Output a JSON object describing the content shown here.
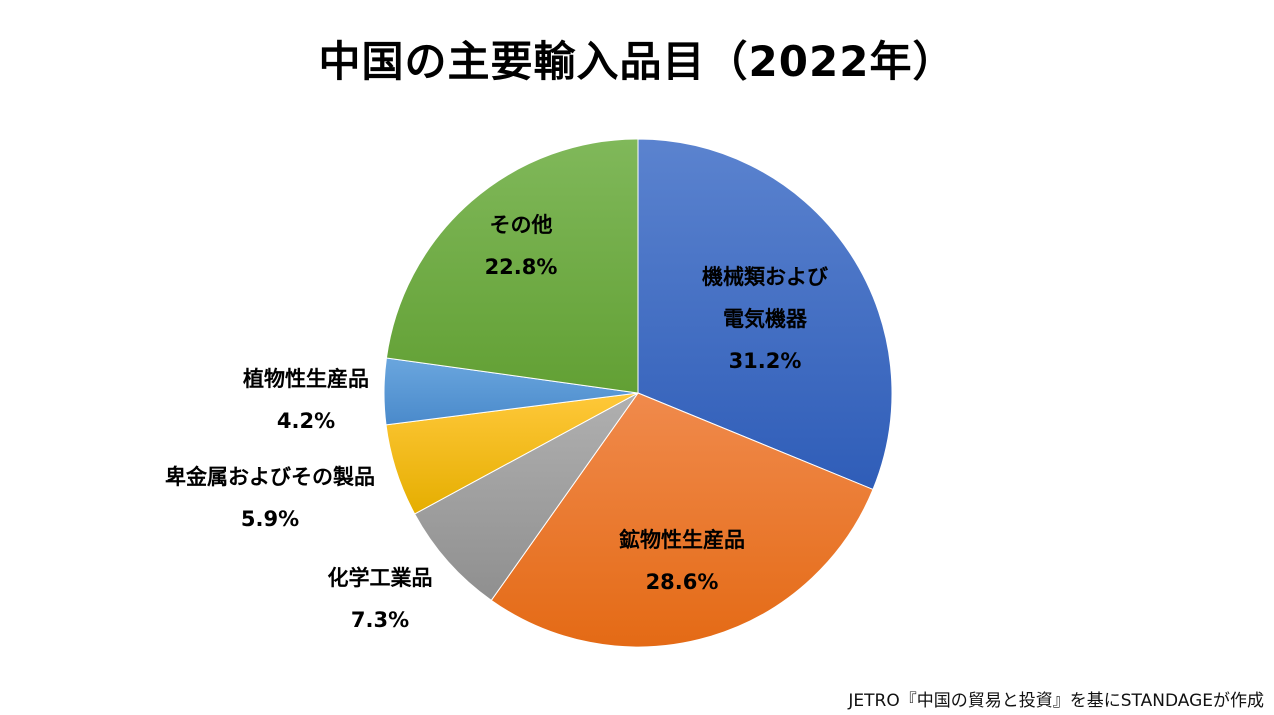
{
  "title": "中国の主要輸入品目（2022年）",
  "source": "JETRO『中国の貿易と投資』を基にSTANDAGEが作成",
  "chart_data": {
    "type": "pie",
    "title": "中国の主要輸入品目（2022年）",
    "start_angle": "12 o'clock, clockwise",
    "categories": [
      "機械類および電気機器",
      "鉱物性生産品",
      "化学工業品",
      "卑金属およびその製品",
      "植物性生産品",
      "その他"
    ],
    "values": [
      31.2,
      28.6,
      7.3,
      5.9,
      4.2,
      22.8
    ],
    "unit": "%",
    "colors": [
      "#4472C4",
      "#ED7D31",
      "#A5A5A5",
      "#FFC000",
      "#5B9BD5",
      "#70AD47"
    ],
    "legend": "none (data labels)"
  },
  "labels": [
    {
      "name": "機械類および電気機器",
      "line1": "機械類および",
      "line2": "電気機器",
      "pct": "31.2%"
    },
    {
      "name": "鉱物性生産品",
      "line1": "鉱物性生産品",
      "pct": "28.6%"
    },
    {
      "name": "化学工業品",
      "line1": "化学工業品",
      "pct": "7.3%"
    },
    {
      "name": "卑金属およびその製品",
      "line1": "卑金属およびその製品",
      "pct": "5.9%"
    },
    {
      "name": "植物性生産品",
      "line1": "植物性生産品",
      "pct": "4.2%"
    },
    {
      "name": "その他",
      "line1": "その他",
      "pct": "22.8%"
    }
  ]
}
